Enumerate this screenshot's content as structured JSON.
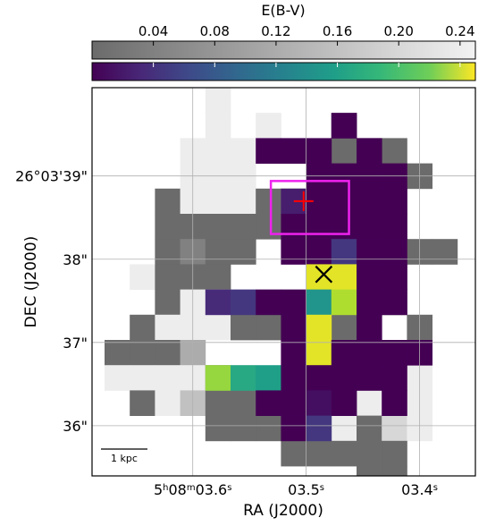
{
  "chart_data": {
    "type": "heatmap",
    "colorbar": {
      "label": "E(B-V)",
      "ticks": [
        0.04,
        0.08,
        0.12,
        0.16,
        0.2,
        0.24
      ],
      "tick_labels": [
        "0.04",
        "0.08",
        "0.12",
        "0.16",
        "0.20",
        "0.24"
      ],
      "range": [
        0.0,
        0.25
      ],
      "colormaps": [
        "gray",
        "viridis"
      ]
    },
    "xlabel": "RA (J2000)",
    "ylabel": "DEC (J2000)",
    "xticks": [
      {
        "label_html": "5<tspan baseline-shift=\"super\" font-size=\"10\">h</tspan>08<tspan baseline-shift=\"super\" font-size=\"10\">m</tspan>03.6<tspan baseline-shift=\"super\" font-size=\"10\">s</tspan>",
        "col": 3.5
      },
      {
        "label_html": "03.5<tspan baseline-shift=\"super\" font-size=\"10\">s</tspan>",
        "col": 8
      },
      {
        "label_html": "03.4<tspan baseline-shift=\"super\" font-size=\"10\">s</tspan>",
        "col": 12.5
      }
    ],
    "yticks": [
      {
        "label": "26°03'39\"",
        "row": 3.5
      },
      {
        "label": "38\"",
        "row": 6.8
      },
      {
        "label": "37\"",
        "row": 10.1
      },
      {
        "label": "36\"",
        "row": 13.4
      }
    ],
    "grid": true,
    "scale_bar_label": "1 kpc",
    "gray_cells": [
      [
        1,
        6,
        1
      ],
      [
        1,
        7,
        1
      ],
      [
        1,
        8,
        1
      ],
      [
        2,
        8,
        1
      ],
      [
        3,
        5,
        1
      ],
      [
        3,
        6,
        1
      ],
      [
        4,
        5,
        1
      ],
      [
        4,
        6,
        1
      ],
      [
        4,
        7,
        1
      ],
      [
        4,
        8,
        1
      ],
      [
        5,
        5,
        1
      ],
      [
        5,
        6,
        1
      ],
      [
        5,
        7,
        1
      ],
      [
        5,
        8,
        1
      ],
      [
        5,
        9,
        1
      ],
      [
        5,
        11,
        1
      ],
      [
        6,
        7,
        1
      ],
      [
        6,
        8,
        1
      ],
      [
        6,
        9,
        1
      ],
      [
        6,
        10,
        1
      ],
      [
        6,
        11,
        1
      ],
      [
        6,
        12,
        1
      ],
      [
        6,
        13,
        1
      ],
      [
        7,
        5,
        1
      ],
      [
        7,
        6,
        1
      ],
      [
        7,
        10,
        1
      ],
      [
        7,
        11,
        1
      ],
      [
        7,
        12,
        1
      ],
      [
        7,
        13,
        1
      ],
      [
        8,
        6,
        1
      ],
      [
        8,
        9,
        1
      ],
      [
        8,
        10,
        1
      ],
      [
        8,
        11,
        1
      ],
      [
        8,
        12,
        1
      ],
      [
        9,
        5,
        1
      ],
      [
        9,
        6,
        1
      ],
      [
        9,
        10,
        1
      ],
      [
        9,
        11,
        1
      ],
      [
        9,
        12,
        1
      ],
      [
        10,
        5,
        1
      ],
      [
        10,
        6,
        1
      ],
      [
        10,
        7,
        1
      ],
      [
        10,
        10,
        1
      ],
      [
        10,
        11,
        1
      ],
      [
        11,
        3,
        1
      ],
      [
        11,
        4,
        1
      ],
      [
        11,
        5,
        1
      ],
      [
        11,
        6,
        1
      ],
      [
        11,
        10,
        1
      ],
      [
        11,
        11,
        1
      ],
      [
        11,
        12,
        1
      ],
      [
        12,
        3,
        1
      ],
      [
        12,
        4,
        1
      ],
      [
        12,
        5,
        1
      ],
      [
        12,
        6,
        1
      ],
      [
        12,
        7,
        1
      ],
      [
        12,
        9,
        1
      ],
      [
        12,
        10,
        1
      ],
      [
        12,
        11,
        1
      ],
      [
        12,
        12,
        1
      ],
      [
        13,
        3,
        1
      ],
      [
        13,
        4,
        1
      ],
      [
        13,
        5,
        1
      ],
      [
        13,
        6,
        1
      ],
      [
        13,
        7,
        1
      ],
      [
        13,
        8,
        1
      ],
      [
        13,
        9,
        1
      ],
      [
        13,
        10,
        1
      ],
      [
        13,
        11,
        1
      ],
      [
        13,
        12,
        1
      ],
      [
        14,
        5,
        1
      ],
      [
        14,
        6,
        1
      ],
      [
        14,
        7,
        1
      ],
      [
        14,
        8,
        1
      ],
      [
        14,
        9,
        1
      ],
      [
        14,
        10,
        1
      ],
      [
        14,
        11,
        1
      ],
      [
        14,
        12,
        1
      ],
      [
        14,
        13,
        1
      ],
      [
        15,
        6,
        1
      ],
      [
        15,
        7,
        1
      ],
      [
        15,
        9,
        1
      ],
      [
        15,
        10,
        1
      ],
      [
        15,
        11,
        1
      ],
      [
        15,
        12,
        1
      ],
      [
        15,
        13,
        1
      ],
      [
        16,
        6,
        1
      ],
      [
        16,
        7,
        1
      ],
      [
        16,
        8,
        1
      ],
      [
        16,
        9,
        1
      ],
      [
        16,
        10,
        1
      ],
      [
        16,
        11,
        1
      ],
      [
        16,
        12,
        1
      ],
      [
        16,
        13,
        1
      ],
      [
        17,
        6,
        1
      ],
      [
        17,
        7,
        1
      ],
      [
        17,
        8,
        1
      ],
      [
        17,
        9,
        1
      ],
      [
        17,
        10,
        1
      ],
      [
        17,
        11,
        1
      ],
      [
        17,
        12,
        1
      ],
      [
        17,
        13,
        1
      ],
      [
        18,
        6,
        1
      ],
      [
        18,
        7,
        1
      ],
      [
        18,
        8,
        1
      ],
      [
        18,
        9,
        1
      ],
      [
        18,
        10,
        1
      ],
      [
        18,
        11,
        1
      ],
      [
        18,
        12,
        1
      ],
      [
        18,
        13,
        1
      ],
      [
        19,
        6,
        1
      ],
      [
        19,
        7,
        1
      ],
      [
        19,
        8,
        1
      ],
      [
        19,
        9,
        1
      ],
      [
        19,
        10,
        1
      ],
      [
        19,
        11,
        1
      ],
      [
        19,
        12,
        1
      ]
    ],
    "gray_overrides": [
      [
        1,
        6,
        0.24
      ],
      [
        1,
        7,
        0.24
      ],
      [
        2,
        6,
        0.24
      ],
      [
        2,
        7,
        0.24
      ],
      [
        3,
        6,
        0.24
      ],
      [
        3,
        7,
        0.24
      ],
      [
        4,
        4,
        0.24
      ],
      [
        4,
        5,
        0.24
      ],
      [
        4,
        6,
        0.24
      ],
      [
        4,
        7,
        0.24
      ],
      [
        5,
        4,
        0.24
      ],
      [
        5,
        5,
        0.24
      ],
      [
        5,
        6,
        0.24
      ],
      [
        5,
        7,
        0.24
      ],
      [
        6,
        3,
        0.24
      ],
      [
        7,
        3,
        0.24
      ],
      [
        7,
        4,
        0.24
      ],
      [
        8,
        2,
        0.24
      ],
      [
        8,
        3,
        0.24
      ],
      [
        8,
        4,
        0.24
      ],
      [
        9,
        2,
        0.24
      ],
      [
        10,
        0,
        0.0
      ]
    ],
    "gray_map_rows": [
      {
        "row": 0,
        "cols": [
          [
            6,
            0.24
          ]
        ]
      },
      {
        "row": 0,
        "cols": []
      }
    ],
    "gray_layer": [
      [
        0,
        4,
        0.24
      ],
      [
        1,
        4,
        0.24
      ],
      [
        1,
        6,
        0.24
      ],
      [
        2,
        3,
        0.24
      ],
      [
        2,
        4,
        0.24
      ],
      [
        2,
        5,
        0.24
      ],
      [
        3,
        3,
        0.24
      ],
      [
        3,
        4,
        0.24
      ],
      [
        3,
        5,
        0.24
      ],
      [
        4,
        2,
        0.0
      ],
      [
        4,
        3,
        0.24
      ],
      [
        4,
        4,
        0.24
      ],
      [
        4,
        5,
        0.24
      ],
      [
        4,
        6,
        0.0
      ],
      [
        4,
        7,
        0.0
      ],
      [
        5,
        2,
        0.0
      ],
      [
        5,
        3,
        0.0
      ],
      [
        5,
        4,
        0.0
      ],
      [
        5,
        5,
        0.0
      ],
      [
        5,
        6,
        0.0
      ],
      [
        6,
        2,
        0.0
      ],
      [
        6,
        3,
        0.04
      ],
      [
        6,
        4,
        0.0
      ],
      [
        6,
        5,
        0.0
      ],
      [
        7,
        1,
        0.24
      ],
      [
        7,
        2,
        0.0
      ],
      [
        7,
        3,
        0.0
      ],
      [
        7,
        4,
        0.0
      ],
      [
        8,
        2,
        0.0
      ],
      [
        8,
        3,
        0.24
      ],
      [
        8,
        4,
        0.24
      ],
      [
        9,
        1,
        0.0
      ],
      [
        9,
        2,
        0.24
      ],
      [
        9,
        3,
        0.24
      ],
      [
        9,
        4,
        0.24
      ],
      [
        9,
        5,
        0.0
      ],
      [
        9,
        6,
        0.0
      ],
      [
        10,
        0,
        0.0
      ],
      [
        10,
        1,
        0.0
      ],
      [
        10,
        2,
        0.0
      ],
      [
        10,
        3,
        0.12
      ],
      [
        11,
        0,
        0.24
      ],
      [
        11,
        1,
        0.24
      ],
      [
        11,
        2,
        0.24
      ],
      [
        11,
        3,
        0.24
      ],
      [
        11,
        4,
        0.0
      ],
      [
        11,
        5,
        0.24
      ],
      [
        12,
        1,
        0.0
      ],
      [
        12,
        2,
        0.24
      ],
      [
        12,
        3,
        0.16
      ],
      [
        12,
        4,
        0.0
      ],
      [
        12,
        5,
        0.0
      ],
      [
        13,
        4,
        0.0
      ],
      [
        13,
        5,
        0.0
      ],
      [
        13,
        6,
        0.0
      ],
      [
        14,
        7,
        0.0
      ],
      [
        6,
        11,
        0.0
      ],
      [
        9,
        9,
        0.0
      ],
      [
        9,
        12,
        0.0
      ],
      [
        10,
        9,
        0.0
      ],
      [
        10,
        10,
        0.24
      ],
      [
        10,
        11,
        0.24
      ],
      [
        11,
        10,
        0.0
      ],
      [
        11,
        11,
        0.0
      ],
      [
        11,
        12,
        0.24
      ],
      [
        12,
        7,
        0.24
      ],
      [
        12,
        8,
        0.24
      ],
      [
        12,
        9,
        0.24
      ],
      [
        12,
        10,
        0.24
      ],
      [
        12,
        11,
        0.24
      ],
      [
        12,
        12,
        0.24
      ],
      [
        13,
        8,
        0.24
      ],
      [
        13,
        9,
        0.24
      ],
      [
        13,
        10,
        0.0
      ],
      [
        13,
        11,
        0.2
      ],
      [
        13,
        12,
        0.24
      ],
      [
        14,
        8,
        0.0
      ],
      [
        14,
        9,
        0.0
      ],
      [
        14,
        10,
        0.0
      ],
      [
        14,
        11,
        0.0
      ],
      [
        15,
        10,
        0.0
      ],
      [
        15,
        11,
        0.0
      ],
      [
        4,
        11,
        0.0
      ],
      [
        5,
        11,
        0.0
      ],
      [
        6,
        12,
        0.0
      ],
      [
        6,
        13,
        0.0
      ],
      [
        7,
        11,
        0.0
      ],
      [
        8,
        11,
        0.0
      ],
      [
        1,
        9,
        0.0
      ],
      [
        2,
        9,
        0.0
      ],
      [
        2,
        10,
        0.0
      ],
      [
        2,
        11,
        0.0
      ],
      [
        3,
        10,
        0.0
      ],
      [
        3,
        11,
        0.0
      ],
      [
        3,
        12,
        0.0
      ]
    ],
    "color_layer": [
      [
        1,
        9,
        0.0
      ],
      [
        2,
        6,
        0.0
      ],
      [
        2,
        7,
        0.0
      ],
      [
        2,
        8,
        0.0
      ],
      [
        2,
        10,
        0.0
      ],
      [
        3,
        8,
        0.0
      ],
      [
        3,
        9,
        0.0
      ],
      [
        3,
        10,
        0.0
      ],
      [
        3,
        11,
        0.0
      ],
      [
        4,
        7,
        0.02
      ],
      [
        4,
        8,
        0.0
      ],
      [
        4,
        9,
        0.0
      ],
      [
        4,
        10,
        0.0
      ],
      [
        4,
        11,
        0.0
      ],
      [
        5,
        7,
        0.0
      ],
      [
        5,
        8,
        0.0
      ],
      [
        5,
        9,
        0.0
      ],
      [
        5,
        10,
        0.0
      ],
      [
        5,
        11,
        0.0
      ],
      [
        6,
        7,
        0.0
      ],
      [
        6,
        8,
        0.0
      ],
      [
        6,
        9,
        0.04
      ],
      [
        6,
        10,
        0.0
      ],
      [
        6,
        11,
        0.0
      ],
      [
        7,
        8,
        0.24
      ],
      [
        7,
        9,
        0.24
      ],
      [
        7,
        10,
        0.0
      ],
      [
        7,
        11,
        0.0
      ],
      [
        8,
        4,
        0.03
      ],
      [
        8,
        5,
        0.04
      ],
      [
        8,
        6,
        0.0
      ],
      [
        8,
        7,
        0.0
      ],
      [
        8,
        8,
        0.13
      ],
      [
        8,
        9,
        0.22
      ],
      [
        8,
        10,
        0.0
      ],
      [
        8,
        11,
        0.0
      ],
      [
        9,
        7,
        0.0
      ],
      [
        9,
        8,
        0.24
      ],
      [
        9,
        10,
        0.0
      ],
      [
        10,
        7,
        0.0
      ],
      [
        10,
        8,
        0.24
      ],
      [
        10,
        9,
        0.0
      ],
      [
        10,
        10,
        0.0
      ],
      [
        10,
        11,
        0.0
      ],
      [
        10,
        12,
        0.0
      ],
      [
        11,
        4,
        0.21
      ],
      [
        11,
        5,
        0.15
      ],
      [
        11,
        6,
        0.14
      ],
      [
        11,
        7,
        0.0
      ],
      [
        11,
        8,
        0.0
      ],
      [
        11,
        9,
        0.0
      ],
      [
        11,
        10,
        0.0
      ],
      [
        11,
        11,
        0.0
      ],
      [
        12,
        6,
        0.0
      ],
      [
        12,
        7,
        0.0
      ],
      [
        12,
        8,
        0.01
      ],
      [
        12,
        9,
        0.0
      ],
      [
        12,
        11,
        0.0
      ],
      [
        13,
        7,
        0.0
      ],
      [
        13,
        8,
        0.04
      ]
    ],
    "markers": [
      {
        "symbol": "+",
        "col": 7.9,
        "row": 4.5,
        "color": "#ff0000"
      },
      {
        "symbol": "x",
        "col": 8.7,
        "row": 7.4,
        "color": "#000000"
      }
    ],
    "box": {
      "col0": 6.6,
      "row0": 3.7,
      "col1": 9.7,
      "row1": 5.8,
      "color": "#ee22ee"
    }
  }
}
